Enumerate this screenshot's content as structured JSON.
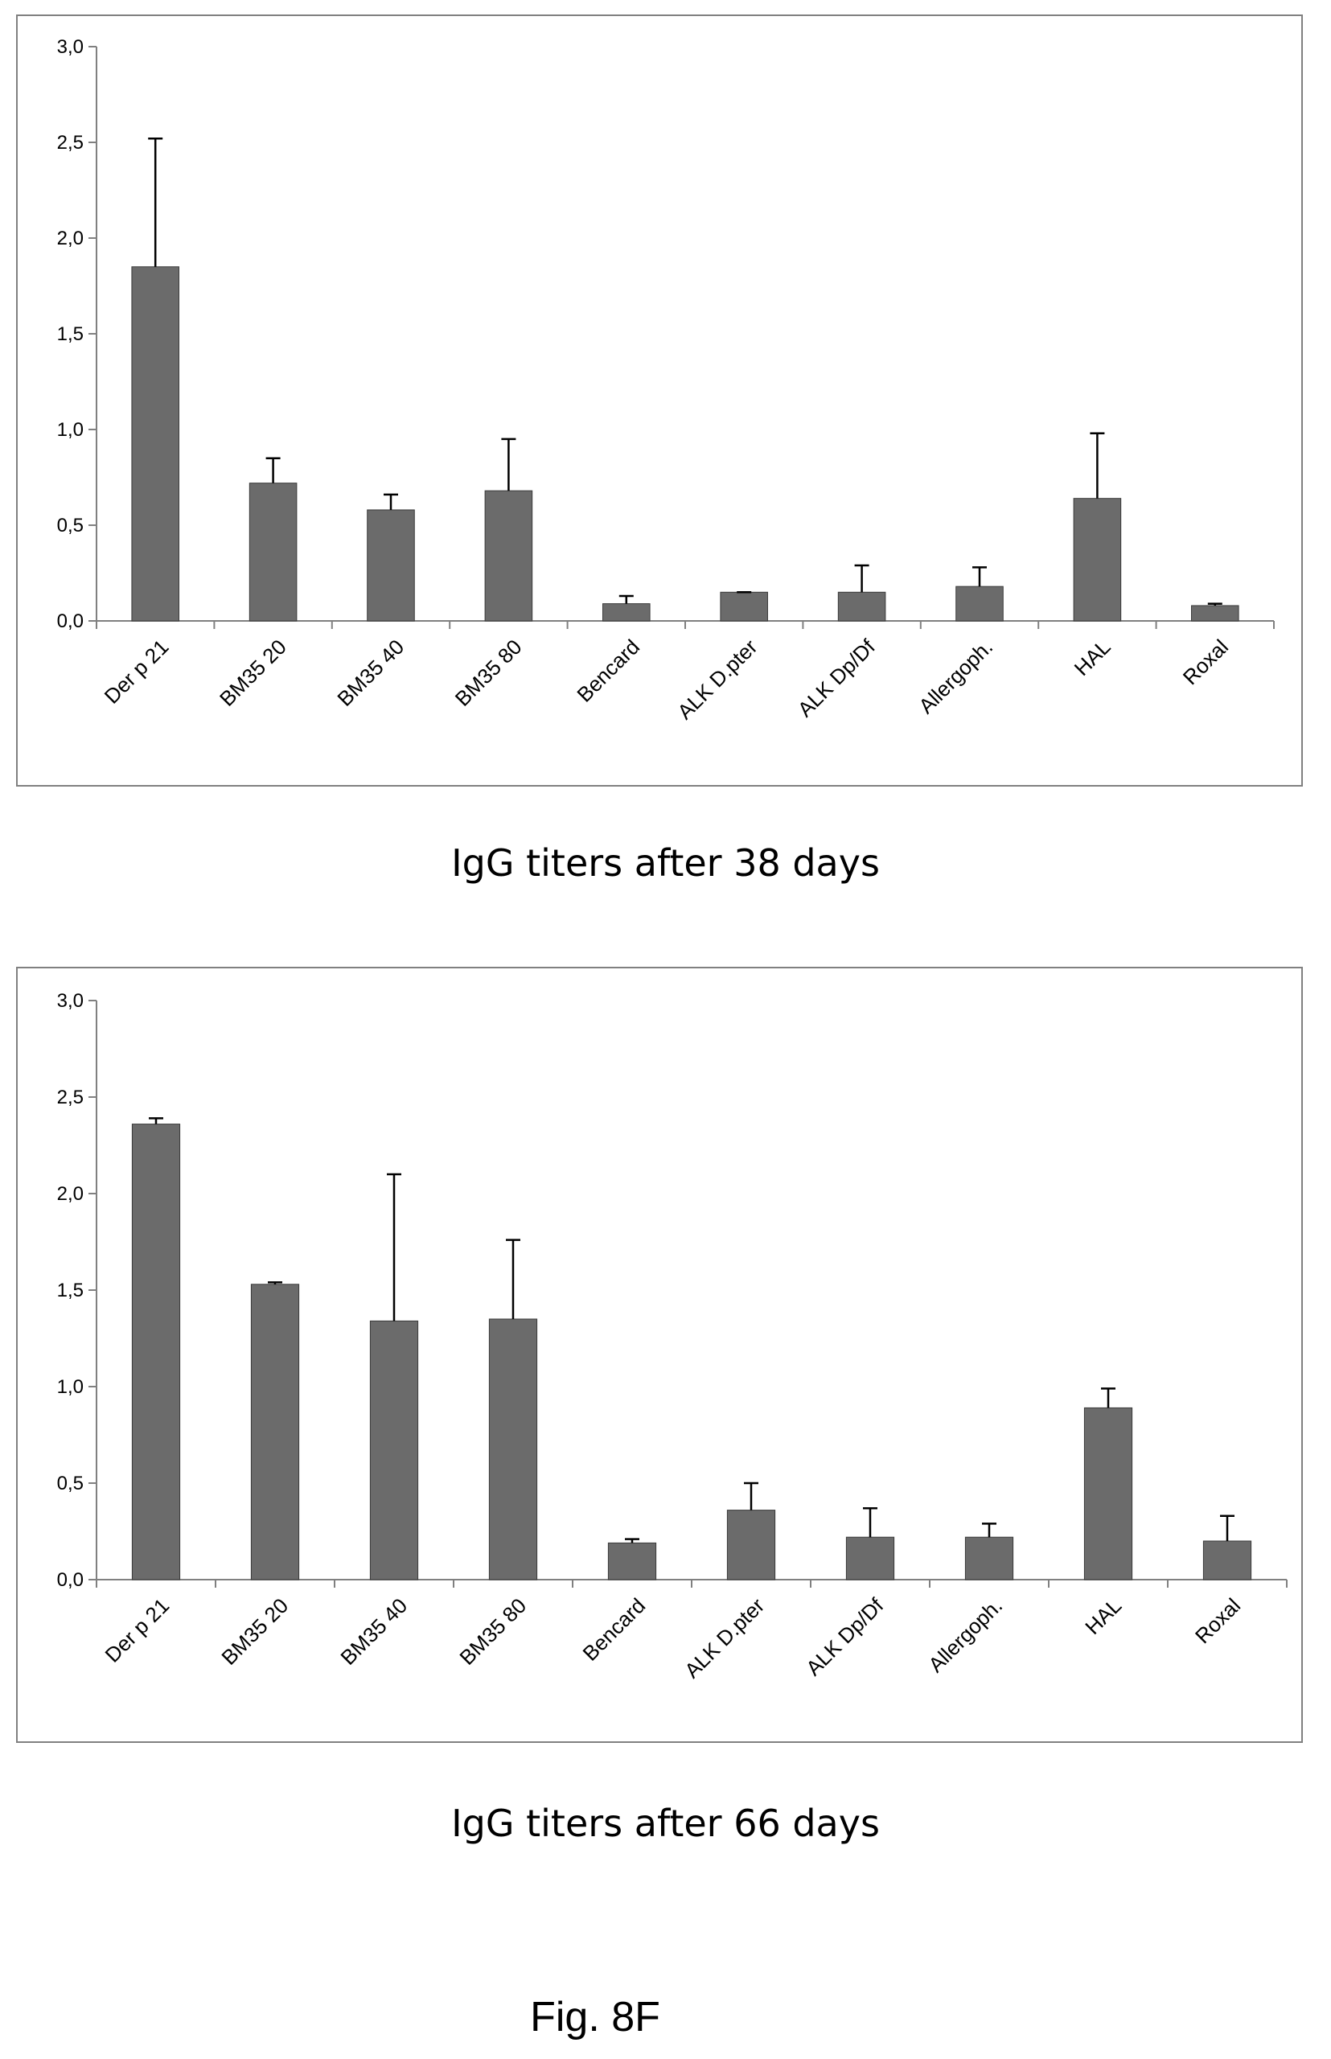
{
  "figure_label": "Fig. 8F",
  "captions": [
    "IgG titers after 38 days",
    "IgG titers after 66 days"
  ],
  "chart_data": [
    {
      "type": "bar",
      "caption": "IgG titers after 38 days",
      "categories": [
        "Der p 21",
        "BM35 20",
        "BM35 40",
        "BM35 80",
        "Bencard",
        "ALK D.pter",
        "ALK Dp/Df",
        "Allergoph.",
        "HAL",
        "Roxal"
      ],
      "values": [
        1.85,
        0.72,
        0.58,
        0.68,
        0.09,
        0.15,
        0.15,
        0.18,
        0.64,
        0.08
      ],
      "errors": [
        0.67,
        0.13,
        0.08,
        0.27,
        0.04,
        0.0,
        0.14,
        0.1,
        0.34,
        0.01
      ],
      "yticks": [
        "0,0",
        "0,5",
        "1,0",
        "1,5",
        "2,0",
        "2,5",
        "3,0"
      ],
      "ylim": [
        0,
        3.0
      ],
      "xlabel": "",
      "ylabel": "",
      "grid": false,
      "bar_color": "#6b6b6b"
    },
    {
      "type": "bar",
      "caption": "IgG titers after 66 days",
      "categories": [
        "Der p 21",
        "BM35 20",
        "BM35 40",
        "BM35 80",
        "Bencard",
        "ALK D.pter",
        "ALK Dp/Df",
        "Allergoph.",
        "HAL",
        "Roxal"
      ],
      "values": [
        2.36,
        1.53,
        1.34,
        1.35,
        0.19,
        0.36,
        0.22,
        0.22,
        0.89,
        0.2
      ],
      "errors": [
        0.03,
        0.01,
        0.76,
        0.41,
        0.02,
        0.14,
        0.15,
        0.07,
        0.1,
        0.13
      ],
      "yticks": [
        "0,0",
        "0,5",
        "1,0",
        "1,5",
        "2,0",
        "2,5",
        "3,0"
      ],
      "ylim": [
        0,
        3.0
      ],
      "xlabel": "",
      "ylabel": "",
      "grid": false,
      "bar_color": "#6b6b6b"
    }
  ]
}
